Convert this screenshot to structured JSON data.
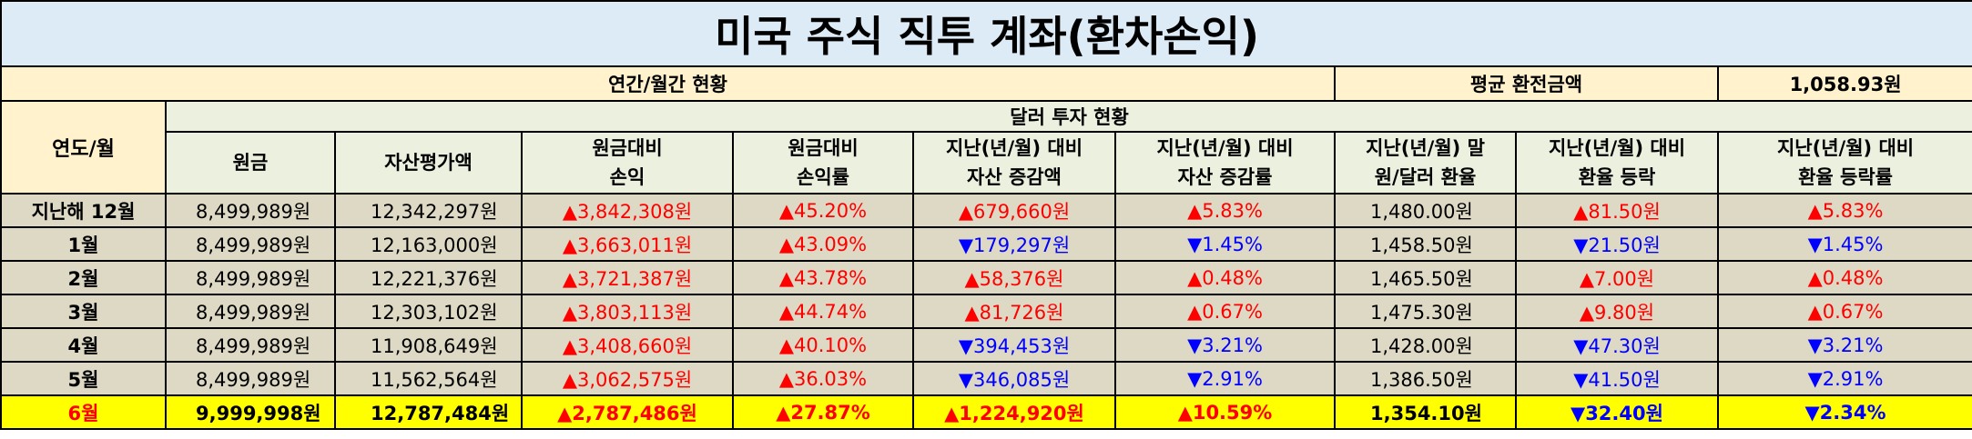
{
  "title": "미국 주식 직투 계좌(환차손익)",
  "section_label": "연간/월간 현황",
  "avg_exchange_label": "평균 환전금액",
  "avg_exchange_value": "1,058.93원",
  "row_header": "연도/월",
  "group_header": "달러 투자 현황",
  "columns": [
    [
      "원금"
    ],
    [
      "자산평가액"
    ],
    [
      "원금대비",
      "손익"
    ],
    [
      "원금대비",
      "손익률"
    ],
    [
      "지난(년/월) 대비",
      "자산 증감액"
    ],
    [
      "지난(년/월) 대비",
      "자산 증감률"
    ],
    [
      "지난(년/월) 말",
      "원/달러 환율"
    ],
    [
      "지난(년/월) 대비",
      "환율 등락"
    ],
    [
      "지난(년/월) 대비",
      "환율 등락률"
    ]
  ],
  "rows": [
    {
      "label": "지난해 12월",
      "principal": "8,499,989원",
      "asset": "12,342,297원",
      "pl": "▲3,842,308원",
      "pl_dir": "up",
      "plr": "▲45.20%",
      "plr_dir": "up",
      "chg": "▲679,660원",
      "chg_dir": "up",
      "chgr": "▲5.83%",
      "chgr_dir": "up",
      "fx": "1,480.00원",
      "fxchg": "▲81.50원",
      "fxchg_dir": "up",
      "fxr": "▲5.83%",
      "fxr_dir": "up",
      "highlight": false
    },
    {
      "label": "1월",
      "principal": "8,499,989원",
      "asset": "12,163,000원",
      "pl": "▲3,663,011원",
      "pl_dir": "up",
      "plr": "▲43.09%",
      "plr_dir": "up",
      "chg": "▼179,297원",
      "chg_dir": "down",
      "chgr": "▼1.45%",
      "chgr_dir": "down",
      "fx": "1,458.50원",
      "fxchg": "▼21.50원",
      "fxchg_dir": "down",
      "fxr": "▼1.45%",
      "fxr_dir": "down",
      "highlight": false
    },
    {
      "label": "2월",
      "principal": "8,499,989원",
      "asset": "12,221,376원",
      "pl": "▲3,721,387원",
      "pl_dir": "up",
      "plr": "▲43.78%",
      "plr_dir": "up",
      "chg": "▲58,376원",
      "chg_dir": "up",
      "chgr": "▲0.48%",
      "chgr_dir": "up",
      "fx": "1,465.50원",
      "fxchg": "▲7.00원",
      "fxchg_dir": "up",
      "fxr": "▲0.48%",
      "fxr_dir": "up",
      "highlight": false
    },
    {
      "label": "3월",
      "principal": "8,499,989원",
      "asset": "12,303,102원",
      "pl": "▲3,803,113원",
      "pl_dir": "up",
      "plr": "▲44.74%",
      "plr_dir": "up",
      "chg": "▲81,726원",
      "chg_dir": "up",
      "chgr": "▲0.67%",
      "chgr_dir": "up",
      "fx": "1,475.30원",
      "fxchg": "▲9.80원",
      "fxchg_dir": "up",
      "fxr": "▲0.67%",
      "fxr_dir": "up",
      "highlight": false
    },
    {
      "label": "4월",
      "principal": "8,499,989원",
      "asset": "11,908,649원",
      "pl": "▲3,408,660원",
      "pl_dir": "up",
      "plr": "▲40.10%",
      "plr_dir": "up",
      "chg": "▼394,453원",
      "chg_dir": "down",
      "chgr": "▼3.21%",
      "chgr_dir": "down",
      "fx": "1,428.00원",
      "fxchg": "▼47.30원",
      "fxchg_dir": "down",
      "fxr": "▼3.21%",
      "fxr_dir": "down",
      "highlight": false
    },
    {
      "label": "5월",
      "principal": "8,499,989원",
      "asset": "11,562,564원",
      "pl": "▲3,062,575원",
      "pl_dir": "up",
      "plr": "▲36.03%",
      "plr_dir": "up",
      "chg": "▼346,085원",
      "chg_dir": "down",
      "chgr": "▼2.91%",
      "chgr_dir": "down",
      "fx": "1,386.50원",
      "fxchg": "▼41.50원",
      "fxchg_dir": "down",
      "fxr": "▼2.91%",
      "fxr_dir": "down",
      "highlight": false
    },
    {
      "label": "6월",
      "principal": "9,999,998원",
      "asset": "12,787,484원",
      "pl": "▲2,787,486원",
      "pl_dir": "up",
      "plr": "▲27.87%",
      "plr_dir": "up",
      "chg": "▲1,224,920원",
      "chg_dir": "up",
      "chgr": "▲10.59%",
      "chgr_dir": "up",
      "fx": "1,354.10원",
      "fxchg": "▼32.40원",
      "fxchg_dir": "down",
      "fxr": "▼2.34%",
      "fxr_dir": "down",
      "highlight": true
    }
  ],
  "colors": {
    "up": "#ff0000",
    "down": "#0000ff",
    "highlight": "#ffff00",
    "title_bg": "#ddebf7",
    "header_bg": "#fff2cc",
    "subheader_bg": "#ebf1de",
    "row_bg": "#ddd9c4"
  }
}
